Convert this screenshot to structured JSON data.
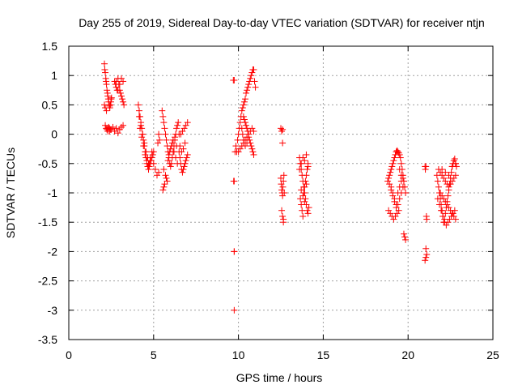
{
  "chart_data": {
    "type": "scatter",
    "title": "Day 255 of 2019, Sidereal Day-to-day VTEC variation (SDTVAR) for receiver ntjn",
    "xlabel": "GPS time / hours",
    "ylabel": "SDTVAR / TECUs",
    "xlim": [
      0,
      25
    ],
    "ylim": [
      -3.5,
      1.5
    ],
    "xticks": [
      0,
      5,
      10,
      15,
      20,
      25
    ],
    "xtick_labels": [
      "0",
      "5",
      "10",
      "15",
      "20",
      "25"
    ],
    "yticks": [
      1.5,
      1,
      0.5,
      0,
      -0.5,
      -1,
      -1.5,
      -2,
      -2.5,
      -3,
      -3.5
    ],
    "ytick_labels": [
      "1.5",
      "1",
      "0.5",
      "0",
      "-0.5",
      "-1",
      "-1.5",
      "-2",
      "-2.5",
      "-3",
      "-3.5"
    ],
    "grid": true,
    "marker": "+",
    "color": "#ff0000",
    "series": [
      {
        "name": "SDTVAR",
        "x": [
          2.1,
          2.12,
          2.15,
          2.18,
          2.2,
          2.22,
          2.25,
          2.28,
          2.3,
          2.33,
          2.35,
          2.38,
          2.4,
          2.42,
          2.45,
          2.48,
          2.5,
          2.52,
          2.15,
          2.2,
          2.25,
          2.3,
          2.35,
          2.4,
          2.45,
          2.1,
          2.15,
          2.22,
          2.3,
          2.4,
          2.5,
          2.6,
          2.7,
          2.8,
          2.9,
          3.0,
          3.1,
          3.2,
          2.7,
          2.75,
          2.8,
          2.85,
          2.9,
          2.95,
          3.0,
          3.05,
          3.1,
          3.15,
          3.2,
          3.25,
          2.8,
          2.9,
          3.0,
          3.1,
          3.2,
          4.1,
          4.15,
          4.2,
          4.25,
          4.3,
          4.35,
          4.4,
          4.45,
          4.5,
          4.55,
          4.6,
          4.65,
          4.7,
          4.75,
          4.8,
          4.85,
          4.9,
          4.95,
          5.0,
          4.2,
          4.3,
          4.4,
          4.5,
          4.6,
          4.7,
          4.8,
          4.9,
          5.0,
          5.1,
          5.2,
          5.3,
          4.15,
          4.25,
          4.35,
          4.45,
          4.55,
          4.65,
          4.75,
          5.5,
          5.55,
          5.6,
          5.65,
          5.7,
          5.75,
          5.8,
          5.85,
          5.9,
          5.95,
          6.0,
          6.05,
          6.1,
          6.15,
          6.2,
          6.25,
          6.3,
          6.35,
          6.4,
          6.45,
          6.5,
          5.6,
          5.7,
          5.8,
          5.9,
          6.0,
          6.1,
          6.2,
          6.3,
          6.4,
          5.65,
          5.75,
          5.85,
          5.95,
          6.05,
          6.15,
          6.25,
          6.35,
          6.5,
          6.55,
          6.6,
          6.65,
          6.7,
          6.75,
          6.8,
          6.85,
          6.9,
          6.95,
          7.0,
          6.6,
          6.7,
          6.8,
          6.9,
          7.0,
          6.55,
          6.65,
          6.75,
          6.85,
          5.55,
          5.6,
          5.25,
          5.3,
          5.35,
          9.7,
          9.72,
          9.75,
          9.8,
          9.85,
          9.9,
          9.95,
          10.0,
          10.05,
          10.1,
          10.15,
          10.2,
          10.25,
          10.3,
          10.35,
          10.4,
          10.45,
          10.5,
          10.55,
          10.6,
          10.65,
          10.7,
          10.75,
          10.8,
          10.85,
          10.9,
          10.95,
          11.0,
          10.3,
          10.35,
          10.4,
          10.45,
          10.5,
          10.55,
          10.6,
          10.65,
          10.7,
          10.75,
          10.8,
          10.85,
          10.9,
          10.2,
          10.25,
          10.3,
          10.4,
          10.5,
          10.6,
          10.7,
          10.8,
          10.9,
          10.0,
          10.1,
          10.2,
          10.3,
          10.4,
          10.5,
          9.75,
          9.75,
          9.75,
          9.75,
          12.5,
          12.52,
          12.55,
          12.58,
          12.6,
          12.62,
          12.65,
          12.68,
          12.7,
          12.55,
          12.6,
          12.65,
          12.5,
          12.55,
          12.6,
          12.6,
          12.65,
          13.6,
          13.65,
          13.7,
          13.75,
          13.8,
          13.85,
          13.9,
          13.95,
          14.0,
          14.05,
          14.1,
          14.15,
          13.65,
          13.7,
          13.75,
          13.8,
          13.85,
          13.9,
          13.95,
          14.0,
          14.05,
          14.1,
          13.6,
          13.7,
          13.8,
          13.9,
          14.0,
          14.1,
          13.7,
          13.8,
          13.9,
          14.0,
          18.8,
          18.85,
          18.9,
          18.95,
          19.0,
          19.05,
          19.1,
          19.15,
          19.2,
          19.25,
          19.3,
          19.35,
          19.4,
          19.45,
          19.5,
          19.55,
          19.6,
          19.65,
          19.7,
          19.75,
          19.8,
          19.85,
          18.85,
          18.95,
          19.05,
          19.15,
          19.25,
          19.35,
          19.45,
          19.0,
          19.1,
          19.2,
          19.3,
          19.4,
          19.5,
          19.6,
          19.7,
          18.9,
          19.0,
          19.1,
          19.2,
          19.3,
          19.4,
          19.5,
          19.6,
          19.7,
          19.75,
          19.8,
          19.85,
          19.5,
          19.6,
          21.0,
          21.02,
          21.05,
          21.08,
          21.1,
          21.05,
          21.1,
          21.0,
          21.05,
          21.7,
          21.75,
          21.8,
          21.85,
          21.9,
          21.95,
          22.0,
          22.05,
          22.1,
          22.15,
          22.2,
          22.25,
          22.3,
          22.35,
          22.4,
          22.45,
          22.5,
          22.55,
          22.6,
          22.65,
          22.7,
          22.75,
          22.8,
          22.85,
          21.8,
          21.9,
          22.0,
          22.1,
          22.2,
          22.3,
          22.4,
          22.5,
          22.6,
          22.7,
          22.8,
          21.75,
          21.85,
          21.95,
          22.05,
          22.15,
          22.25,
          22.35,
          22.45,
          22.55,
          22.65,
          22.75,
          21.9,
          22.0,
          22.1,
          22.2,
          22.3,
          22.4,
          22.5,
          22.6,
          22.7,
          22.8,
          22.0,
          22.2,
          22.4,
          22.6,
          22.8
        ],
        "y": [
          1.2,
          1.1,
          1.05,
          0.95,
          0.9,
          0.85,
          0.75,
          0.7,
          0.65,
          0.6,
          0.55,
          0.5,
          0.48,
          0.45,
          0.5,
          0.55,
          0.6,
          0.62,
          0.15,
          0.1,
          0.08,
          0.05,
          0.12,
          0.1,
          0.08,
          0.5,
          0.45,
          0.4,
          0.1,
          0.05,
          0.08,
          0.12,
          0.05,
          0.1,
          0.02,
          0.08,
          0.12,
          0.15,
          0.9,
          0.85,
          0.8,
          0.75,
          0.95,
          0.85,
          0.75,
          0.7,
          0.65,
          0.6,
          0.55,
          0.5,
          0.9,
          0.75,
          0.85,
          0.95,
          0.9,
          0.5,
          0.4,
          0.3,
          0.2,
          0.1,
          0.0,
          -0.1,
          -0.2,
          -0.3,
          -0.4,
          -0.5,
          -0.55,
          -0.6,
          -0.55,
          -0.5,
          -0.45,
          -0.4,
          -0.35,
          -0.3,
          0.1,
          -0.05,
          -0.2,
          -0.35,
          -0.45,
          -0.5,
          -0.4,
          -0.3,
          -0.5,
          -0.6,
          -0.7,
          -0.65,
          0.3,
          0.15,
          0.0,
          -0.15,
          -0.3,
          -0.4,
          -0.5,
          0.4,
          0.3,
          0.2,
          0.1,
          0.0,
          -0.1,
          -0.2,
          -0.3,
          -0.4,
          -0.5,
          -0.55,
          -0.5,
          -0.4,
          -0.3,
          -0.2,
          -0.1,
          0.0,
          0.1,
          0.15,
          0.2,
          0.0,
          -0.6,
          -0.7,
          -0.8,
          -0.35,
          -0.25,
          -0.15,
          -0.3,
          -0.4,
          -0.5,
          -0.85,
          -0.75,
          -0.45,
          -0.3,
          -0.2,
          -0.1,
          -0.05,
          -0.2,
          -0.3,
          -0.4,
          -0.5,
          -0.6,
          -0.65,
          -0.6,
          -0.55,
          -0.5,
          -0.45,
          -0.4,
          -0.35,
          0.0,
          0.05,
          0.1,
          0.15,
          0.2,
          -0.2,
          -0.3,
          -0.25,
          -0.15,
          -0.95,
          -0.9,
          -0.15,
          0.0,
          -0.1,
          0.92,
          -0.8,
          -2.0,
          -0.3,
          -0.2,
          -0.3,
          -0.1,
          0.0,
          0.1,
          0.2,
          0.3,
          0.4,
          0.45,
          0.5,
          0.55,
          0.6,
          0.7,
          0.75,
          0.8,
          0.85,
          0.9,
          0.95,
          1.0,
          1.05,
          1.1,
          1.1,
          0.9,
          0.8,
          0.3,
          0.25,
          0.2,
          0.15,
          0.1,
          0.05,
          0.0,
          -0.1,
          -0.15,
          -0.2,
          -0.25,
          -0.3,
          -0.35,
          0.1,
          0.0,
          -0.1,
          -0.2,
          -0.15,
          -0.05,
          0.05,
          0.1,
          0.05,
          -0.3,
          -0.25,
          -0.2,
          -0.15,
          -0.1,
          -0.05,
          -3.0,
          -2.0,
          -0.8,
          0.92,
          -0.75,
          -0.85,
          -0.95,
          -1.0,
          -1.05,
          -0.9,
          -0.8,
          -0.7,
          -1.0,
          -1.3,
          -1.4,
          -1.5,
          0.1,
          0.05,
          0.08,
          -0.15,
          -1.45,
          -0.4,
          -0.5,
          -0.6,
          -0.7,
          -0.8,
          -0.9,
          -1.0,
          -1.1,
          -1.2,
          -1.3,
          -1.35,
          -1.25,
          -1.1,
          -1.2,
          -1.3,
          -1.4,
          -1.0,
          -0.9,
          -0.8,
          -0.7,
          -0.6,
          -0.5,
          -0.6,
          -0.5,
          -0.4,
          -0.45,
          -0.35,
          -0.55,
          -0.95,
          -1.05,
          -1.15,
          -0.85,
          -0.8,
          -0.75,
          -0.7,
          -0.65,
          -0.6,
          -0.55,
          -0.5,
          -0.45,
          -0.4,
          -0.35,
          -0.3,
          -0.28,
          -0.3,
          -0.32,
          -0.35,
          -0.4,
          -0.5,
          -0.6,
          -0.7,
          -0.8,
          -0.9,
          -1.0,
          -1.3,
          -1.35,
          -1.4,
          -1.45,
          -1.4,
          -1.35,
          -1.3,
          -0.9,
          -1.0,
          -1.1,
          -1.2,
          -1.0,
          -0.9,
          -0.8,
          -0.75,
          -0.85,
          -0.95,
          -1.05,
          -1.15,
          -1.25,
          -1.2,
          -1.1,
          -1.0,
          -0.9,
          -1.7,
          -1.75,
          -1.8,
          -0.6,
          -0.7,
          -0.55,
          -0.6,
          -0.55,
          -1.4,
          -1.45,
          -1.95,
          -2.05,
          -2.15,
          -2.1,
          -0.7,
          -0.8,
          -0.9,
          -1.0,
          -1.1,
          -1.2,
          -1.3,
          -1.4,
          -1.5,
          -1.45,
          -1.35,
          -1.25,
          -1.15,
          -1.05,
          -0.95,
          -0.85,
          -0.75,
          -0.65,
          -0.55,
          -0.5,
          -0.45,
          -0.42,
          -0.5,
          -0.55,
          -0.6,
          -0.65,
          -0.7,
          -0.75,
          -0.8,
          -0.85,
          -0.9,
          -0.85,
          -0.8,
          -0.75,
          -0.7,
          -1.1,
          -1.2,
          -1.3,
          -1.4,
          -1.5,
          -1.55,
          -1.5,
          -1.45,
          -1.4,
          -1.35,
          -1.3,
          -1.0,
          -1.05,
          -1.1,
          -1.15,
          -1.2,
          -1.25,
          -1.3,
          -1.35,
          -1.4,
          -1.45,
          -0.6,
          -0.65,
          -0.7,
          -0.55,
          -0.5
        ]
      }
    ]
  }
}
